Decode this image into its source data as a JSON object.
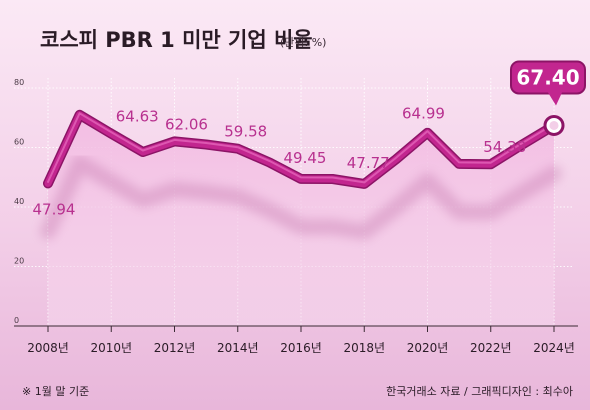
{
  "header": {
    "title": "코스피 PBR 1 미만 기업 비율",
    "unit": "(단위: %)"
  },
  "footer": {
    "note": "※ 1월 말 기준",
    "source": "한국거래소 자료 / 그래픽디자인 : 최수아"
  },
  "colors": {
    "line": "#c2268f",
    "label": "#b8318f",
    "callout": "#c2268f"
  },
  "chart_data": {
    "type": "line",
    "x": [
      2008,
      2009,
      2010,
      2011,
      2012,
      2013,
      2014,
      2015,
      2016,
      2017,
      2018,
      2019,
      2020,
      2021,
      2022,
      2023,
      2024
    ],
    "values": [
      47.94,
      71,
      64.63,
      58.5,
      62.06,
      61,
      59.58,
      55,
      49.45,
      49.4,
      47.77,
      56,
      64.99,
      54.5,
      54.38,
      61,
      67.4
    ],
    "xticks": [
      "2008년",
      "2010년",
      "2012년",
      "2014년",
      "2016년",
      "2018년",
      "2020년",
      "2022년",
      "2024년"
    ],
    "xtick_years": [
      2008,
      2010,
      2012,
      2014,
      2016,
      2018,
      2020,
      2022,
      2024
    ],
    "yticks": [
      "0",
      "20",
      "40",
      "60",
      "80"
    ],
    "ytick_values": [
      0,
      20,
      40,
      60,
      80
    ],
    "ylim": [
      0,
      80
    ],
    "xlim": [
      2008,
      2024
    ],
    "grid": true,
    "data_labels": [
      {
        "year": 2008,
        "value": 47.94,
        "text": "47.94"
      },
      {
        "year": 2010,
        "value": 64.63,
        "text": "64.63"
      },
      {
        "year": 2012,
        "value": 62.06,
        "text": "62.06"
      },
      {
        "year": 2014,
        "value": 59.58,
        "text": "59.58"
      },
      {
        "year": 2016,
        "value": 49.45,
        "text": "49.45"
      },
      {
        "year": 2018,
        "value": 47.77,
        "text": "47.77"
      },
      {
        "year": 2020,
        "value": 64.99,
        "text": "64.99"
      },
      {
        "year": 2022,
        "value": 54.38,
        "text": "54.38"
      }
    ],
    "highlight": {
      "year": 2024,
      "value": 67.4,
      "text": "67.40"
    }
  }
}
